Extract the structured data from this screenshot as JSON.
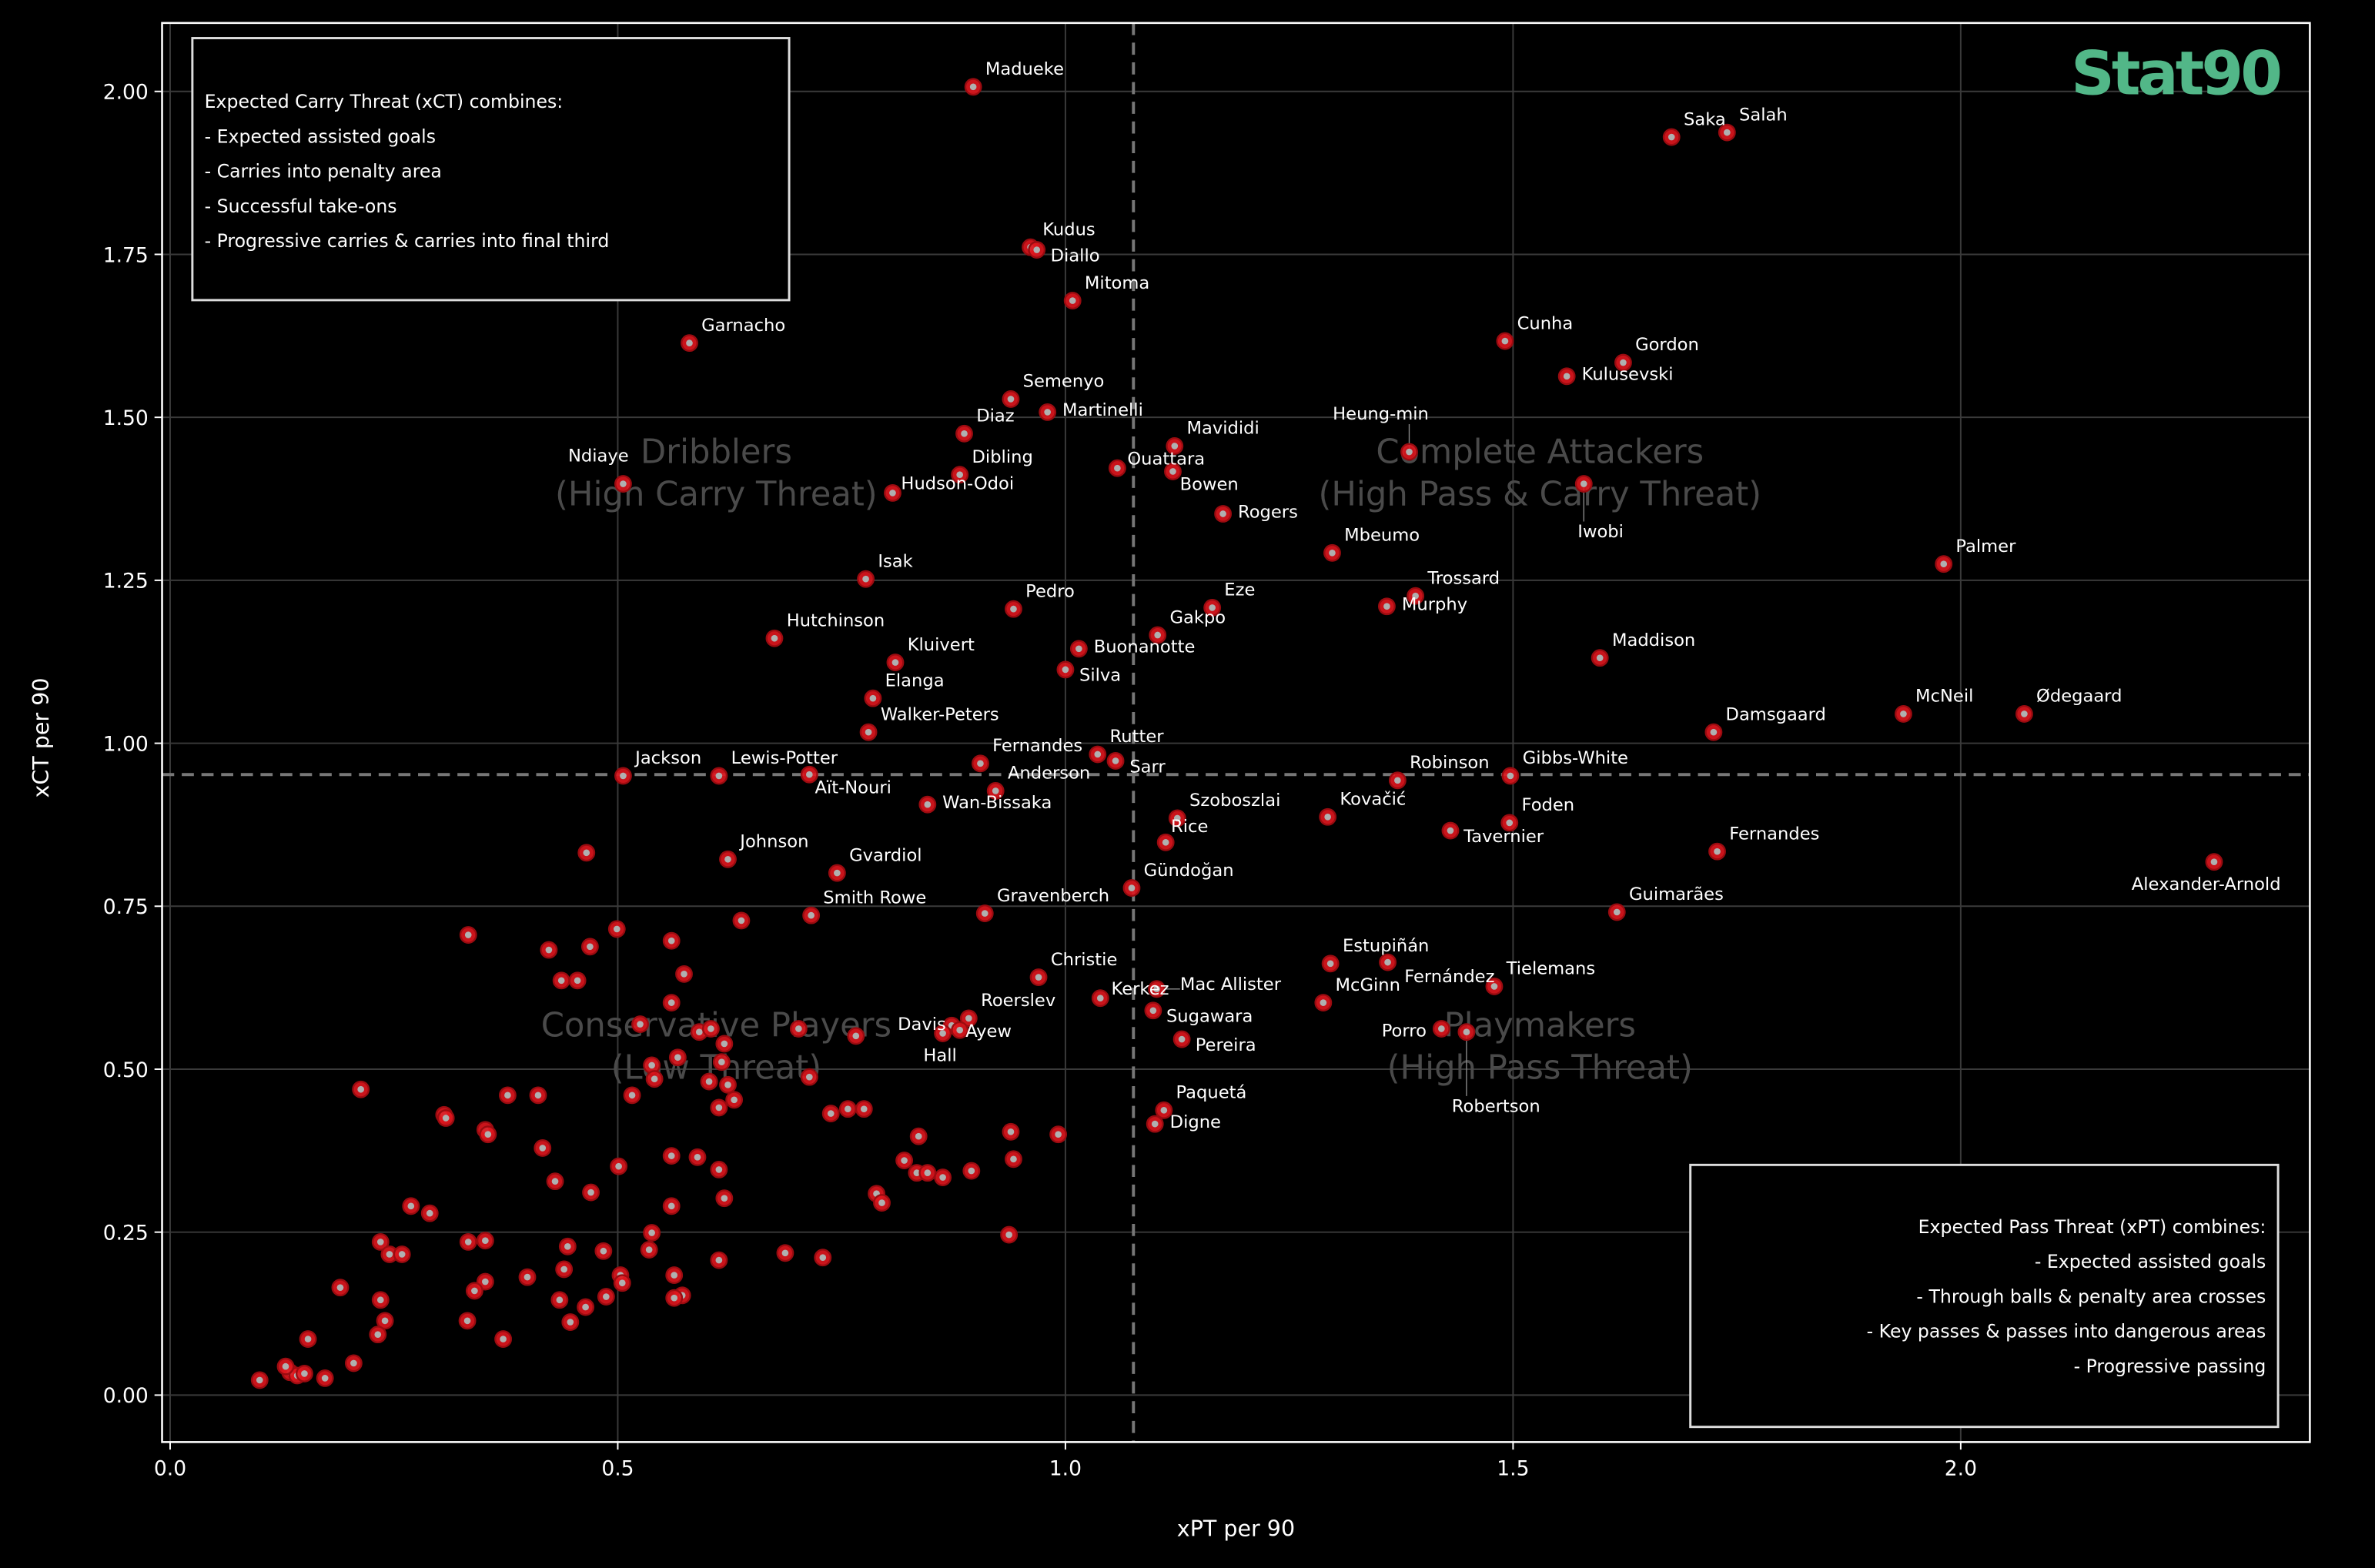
{
  "chart_data": {
    "type": "scatter",
    "xlabel": "xPT per 90",
    "ylabel": "xCT per 90",
    "xlim": [
      -0.009,
      2.39
    ],
    "ylim": [
      -0.072,
      2.105
    ],
    "xticks": [
      "0.0",
      "0.5",
      "1.0",
      "1.5",
      "2.0"
    ],
    "xtick_values": [
      0,
      0.5,
      1.0,
      1.5,
      2.0
    ],
    "yticks": [
      "0.00",
      "0.25",
      "0.50",
      "0.75",
      "1.00",
      "1.25",
      "1.50",
      "1.75",
      "2.00"
    ],
    "ytick_values": [
      0,
      0.25,
      0.5,
      0.75,
      1.0,
      1.25,
      1.5,
      1.75,
      2.0
    ],
    "grid": true,
    "threshold_x": 1.076,
    "threshold_y": 0.952,
    "colors": {
      "background": "#000000",
      "point": "#e0161e",
      "point_center": "#b0b0b0",
      "logo": "#52b788",
      "quadrant_text": "#4a4a4a"
    },
    "quadrants": [
      {
        "title": "Dribblers",
        "subtitle": "(High Carry Threat)",
        "x": 0.61,
        "y1": 1.43,
        "y2": 1.365
      },
      {
        "title": "Complete Attackers",
        "subtitle": "(High Pass & Carry Threat)",
        "x": 1.53,
        "y1": 1.43,
        "y2": 1.365
      },
      {
        "title": "Conservative Players",
        "subtitle": "(Low Threat)",
        "x": 0.61,
        "y1": 0.55,
        "y2": 0.485
      },
      {
        "title": "Playmakers",
        "subtitle": "(High Pass Threat)",
        "x": 1.53,
        "y1": 0.55,
        "y2": 0.485
      }
    ],
    "info_xct": {
      "lines": [
        "Expected Carry Threat (xCT) combines:",
        "- Expected assisted goals",
        "- Carries into penalty area",
        "- Successful take-ons",
        "- Progressive carries & carries into final third"
      ]
    },
    "info_xpt": {
      "lines": [
        "Expected Pass Threat (xPT) combines:",
        "- Expected assisted goals",
        "- Through balls & penalty area crosses",
        "- Key passes & passes into dangerous areas",
        "- Progressive passing"
      ]
    },
    "logo": "Stat90",
    "labeled_points": [
      {
        "name": "Madueke",
        "x": 0.897,
        "y": 2.007
      },
      {
        "name": "Saka",
        "x": 1.677,
        "y": 1.93
      },
      {
        "name": "Salah",
        "x": 1.739,
        "y": 1.937
      },
      {
        "name": "Kudus",
        "x": 0.961,
        "y": 1.761
      },
      {
        "name": "Diallo",
        "x": 0.968,
        "y": 1.757
      },
      {
        "name": "Mitoma",
        "x": 1.008,
        "y": 1.679
      },
      {
        "name": "Garnacho",
        "x": 0.58,
        "y": 1.614
      },
      {
        "name": "Cunha",
        "x": 1.491,
        "y": 1.617
      },
      {
        "name": "Gordon",
        "x": 1.623,
        "y": 1.584
      },
      {
        "name": "Kulusevski",
        "x": 1.56,
        "y": 1.563
      },
      {
        "name": "Semenyo",
        "x": 0.939,
        "y": 1.528
      },
      {
        "name": "Martinelli",
        "x": 0.98,
        "y": 1.508
      },
      {
        "name": "Diaz",
        "x": 0.887,
        "y": 1.475
      },
      {
        "name": "Mavididi",
        "x": 1.122,
        "y": 1.456
      },
      {
        "name": "Heung-min",
        "x": 1.384,
        "y": 1.447
      },
      {
        "name": "Iwobi",
        "x": 1.579,
        "y": 1.398
      },
      {
        "name": "Ndiaye",
        "x": 0.506,
        "y": 1.398
      },
      {
        "name": "Ouattara",
        "x": 1.058,
        "y": 1.422
      },
      {
        "name": "Bowen",
        "x": 1.12,
        "y": 1.417
      },
      {
        "name": "Dibling",
        "x": 0.882,
        "y": 1.412
      },
      {
        "name": "Hudson-Odoi",
        "x": 0.807,
        "y": 1.384
      },
      {
        "name": "Rogers",
        "x": 1.176,
        "y": 1.352
      },
      {
        "name": "Mbeumo",
        "x": 1.298,
        "y": 1.292
      },
      {
        "name": "Palmer",
        "x": 1.981,
        "y": 1.275
      },
      {
        "name": "Isak",
        "x": 0.777,
        "y": 1.252
      },
      {
        "name": "Pedro",
        "x": 0.942,
        "y": 1.206
      },
      {
        "name": "Eze",
        "x": 1.164,
        "y": 1.208
      },
      {
        "name": "Trossard",
        "x": 1.391,
        "y": 1.226
      },
      {
        "name": "Murphy",
        "x": 1.359,
        "y": 1.21
      },
      {
        "name": "Gakpo",
        "x": 1.103,
        "y": 1.166
      },
      {
        "name": "Buonanotte",
        "x": 1.015,
        "y": 1.145
      },
      {
        "name": "Hutchinson",
        "x": 0.675,
        "y": 1.161
      },
      {
        "name": "Silva",
        "x": 1.0,
        "y": 1.113
      },
      {
        "name": "Kluivert",
        "x": 0.81,
        "y": 1.124
      },
      {
        "name": "Maddison",
        "x": 1.597,
        "y": 1.131
      },
      {
        "name": "Elanga",
        "x": 0.785,
        "y": 1.069
      },
      {
        "name": "McNeil",
        "x": 1.936,
        "y": 1.045
      },
      {
        "name": "Ødegaard",
        "x": 2.071,
        "y": 1.045
      },
      {
        "name": "Walker-Peters",
        "x": 0.78,
        "y": 1.017
      },
      {
        "name": "Damsgaard",
        "x": 1.724,
        "y": 1.017
      },
      {
        "name": "Fernandes",
        "x": 0.905,
        "y": 0.969
      },
      {
        "name": "Rutter",
        "x": 1.036,
        "y": 0.983
      },
      {
        "name": "Sarr",
        "x": 1.056,
        "y": 0.973
      },
      {
        "name": "Anderson",
        "x": 0.922,
        "y": 0.927
      },
      {
        "name": "Wan-Bissaka",
        "x": 0.846,
        "y": 0.906
      },
      {
        "name": "Jackson",
        "x": 0.506,
        "y": 0.95
      },
      {
        "name": "Lewis-Potter",
        "x": 0.613,
        "y": 0.95
      },
      {
        "name": "Aït-Nouri",
        "x": 0.714,
        "y": 0.952
      },
      {
        "name": "Robinson",
        "x": 1.371,
        "y": 0.943
      },
      {
        "name": "Gibbs-White",
        "x": 1.497,
        "y": 0.95
      },
      {
        "name": "Szoboszlai",
        "x": 1.125,
        "y": 0.885
      },
      {
        "name": "Kovačić",
        "x": 1.293,
        "y": 0.887
      },
      {
        "name": "Foden",
        "x": 1.496,
        "y": 0.878
      },
      {
        "name": "Tavernier",
        "x": 1.43,
        "y": 0.866
      },
      {
        "name": "Rice",
        "x": 1.112,
        "y": 0.848
      },
      {
        "name": "Fernandes",
        "x": 1.728,
        "y": 0.834
      },
      {
        "name": "Alexander-Arnold",
        "x": 2.283,
        "y": 0.818
      },
      {
        "name": "Johnson",
        "x": 0.623,
        "y": 0.822
      },
      {
        "name": "Gvardiol",
        "x": 0.745,
        "y": 0.801
      },
      {
        "name": "Gündoğan",
        "x": 1.074,
        "y": 0.778
      },
      {
        "name": "Smith Rowe",
        "x": 0.716,
        "y": 0.736
      },
      {
        "name": "Gravenberch",
        "x": 0.91,
        "y": 0.739
      },
      {
        "name": "Guimarães",
        "x": 1.616,
        "y": 0.741
      },
      {
        "name": "Christie",
        "x": 0.97,
        "y": 0.641
      },
      {
        "name": "Kerkez",
        "x": 1.039,
        "y": 0.609
      },
      {
        "name": "Mac Allister",
        "x": 1.102,
        "y": 0.623
      },
      {
        "name": "Sugawara",
        "x": 1.098,
        "y": 0.59
      },
      {
        "name": "Pereira",
        "x": 1.13,
        "y": 0.546
      },
      {
        "name": "McGinn",
        "x": 1.288,
        "y": 0.602
      },
      {
        "name": "Estupiñán",
        "x": 1.296,
        "y": 0.662
      },
      {
        "name": "Fernández",
        "x": 1.36,
        "y": 0.664
      },
      {
        "name": "Tielemans",
        "x": 1.479,
        "y": 0.627
      },
      {
        "name": "Porro",
        "x": 1.42,
        "y": 0.562
      },
      {
        "name": "Robertson",
        "x": 1.448,
        "y": 0.557
      },
      {
        "name": "Paquetá",
        "x": 1.11,
        "y": 0.437
      },
      {
        "name": "Digne",
        "x": 1.1,
        "y": 0.416
      },
      {
        "name": "Roerslev",
        "x": 0.892,
        "y": 0.578
      },
      {
        "name": "Ayew",
        "x": 0.873,
        "y": 0.567
      },
      {
        "name": "Hall",
        "x": 0.863,
        "y": 0.555
      },
      {
        "name": "Davis",
        "x": 0.882,
        "y": 0.56
      }
    ],
    "unlabeled_points": [
      [
        0.465,
        0.832
      ],
      [
        0.333,
        0.706
      ],
      [
        0.638,
        0.728
      ],
      [
        0.499,
        0.715
      ],
      [
        0.469,
        0.688
      ],
      [
        0.423,
        0.683
      ],
      [
        0.56,
        0.697
      ],
      [
        0.437,
        0.636
      ],
      [
        0.455,
        0.636
      ],
      [
        0.574,
        0.646
      ],
      [
        0.56,
        0.602
      ],
      [
        0.525,
        0.569
      ],
      [
        0.591,
        0.557
      ],
      [
        0.604,
        0.562
      ],
      [
        0.619,
        0.539
      ],
      [
        0.567,
        0.518
      ],
      [
        0.538,
        0.506
      ],
      [
        0.541,
        0.485
      ],
      [
        0.602,
        0.481
      ],
      [
        0.616,
        0.511
      ],
      [
        0.623,
        0.476
      ],
      [
        0.63,
        0.453
      ],
      [
        0.613,
        0.441
      ],
      [
        0.516,
        0.46
      ],
      [
        0.702,
        0.562
      ],
      [
        0.766,
        0.551
      ],
      [
        0.714,
        0.488
      ],
      [
        0.738,
        0.432
      ],
      [
        0.757,
        0.439
      ],
      [
        0.775,
        0.439
      ],
      [
        0.213,
        0.469
      ],
      [
        0.306,
        0.43
      ],
      [
        0.308,
        0.425
      ],
      [
        0.352,
        0.407
      ],
      [
        0.355,
        0.4
      ],
      [
        0.377,
        0.46
      ],
      [
        0.411,
        0.46
      ],
      [
        0.416,
        0.379
      ],
      [
        0.43,
        0.328
      ],
      [
        0.47,
        0.311
      ],
      [
        0.501,
        0.351
      ],
      [
        0.56,
        0.367
      ],
      [
        0.589,
        0.365
      ],
      [
        0.613,
        0.346
      ],
      [
        0.619,
        0.302
      ],
      [
        0.56,
        0.29
      ],
      [
        0.538,
        0.249
      ],
      [
        0.535,
        0.223
      ],
      [
        0.444,
        0.228
      ],
      [
        0.44,
        0.193
      ],
      [
        0.435,
        0.146
      ],
      [
        0.447,
        0.112
      ],
      [
        0.464,
        0.135
      ],
      [
        0.484,
        0.221
      ],
      [
        0.487,
        0.151
      ],
      [
        0.503,
        0.184
      ],
      [
        0.505,
        0.172
      ],
      [
        0.563,
        0.184
      ],
      [
        0.572,
        0.153
      ],
      [
        0.563,
        0.149
      ],
      [
        0.613,
        0.207
      ],
      [
        0.399,
        0.181
      ],
      [
        0.352,
        0.174
      ],
      [
        0.34,
        0.16
      ],
      [
        0.333,
        0.235
      ],
      [
        0.352,
        0.237
      ],
      [
        0.332,
        0.114
      ],
      [
        0.372,
        0.086
      ],
      [
        0.29,
        0.279
      ],
      [
        0.269,
        0.29
      ],
      [
        0.235,
        0.235
      ],
      [
        0.245,
        0.216
      ],
      [
        0.259,
        0.216
      ],
      [
        0.235,
        0.146
      ],
      [
        0.24,
        0.114
      ],
      [
        0.232,
        0.093
      ],
      [
        0.205,
        0.049
      ],
      [
        0.19,
        0.165
      ],
      [
        0.154,
        0.086
      ],
      [
        0.134,
        0.035
      ],
      [
        0.142,
        0.03
      ],
      [
        0.15,
        0.033
      ],
      [
        0.173,
        0.026
      ],
      [
        0.1,
        0.023
      ],
      [
        0.129,
        0.044
      ],
      [
        0.836,
        0.397
      ],
      [
        0.82,
        0.36
      ],
      [
        0.834,
        0.341
      ],
      [
        0.846,
        0.341
      ],
      [
        0.863,
        0.334
      ],
      [
        0.895,
        0.344
      ],
      [
        0.789,
        0.309
      ],
      [
        0.795,
        0.295
      ],
      [
        0.939,
        0.404
      ],
      [
        0.942,
        0.362
      ],
      [
        0.992,
        0.4
      ],
      [
        0.937,
        0.246
      ],
      [
        0.729,
        0.211
      ],
      [
        0.687,
        0.218
      ]
    ]
  }
}
